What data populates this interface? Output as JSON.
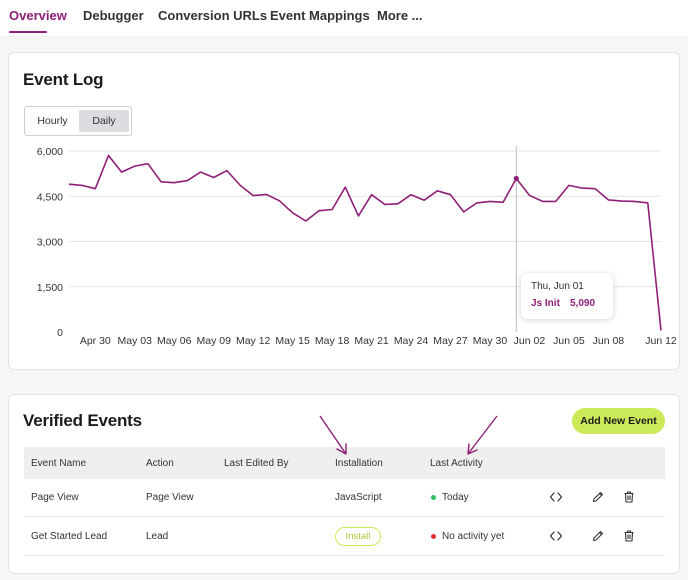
{
  "colors": {
    "accent": "#8e1f78",
    "lime": "#cbea5a",
    "status_ok": "#2dbf5a",
    "status_none": "#e5303a"
  },
  "tabs": [
    {
      "label": "Overview",
      "active": true
    },
    {
      "label": "Debugger",
      "active": false
    },
    {
      "label": "Conversion URLs",
      "active": false
    },
    {
      "label": "Event Mappings",
      "active": false
    },
    {
      "label": "More ...",
      "active": false
    }
  ],
  "event_log": {
    "title": "Event Log",
    "toggle": {
      "options": [
        "Hourly",
        "Daily"
      ],
      "selected": "Daily"
    },
    "tooltip": {
      "date": "Thu, Jun 01",
      "series": "Js Init",
      "value": "5,090"
    }
  },
  "chart_data": {
    "type": "line",
    "ylim": [
      0,
      6000
    ],
    "y_ticks": [
      "6,000",
      "4,500",
      "3,000",
      "1,500",
      "0"
    ],
    "y_tick_values": [
      6000,
      4500,
      3000,
      1500,
      0
    ],
    "x_tick_labels": [
      "Apr 30",
      "May 03",
      "May 06",
      "May 09",
      "May 12",
      "May 15",
      "May 18",
      "May 21",
      "May 24",
      "May 27",
      "May 30",
      "Jun 02",
      "Jun 05",
      "Jun 08",
      "Jun 12"
    ],
    "grid": true,
    "x": [
      "Apr 28",
      "Apr 29",
      "Apr 30",
      "May 01",
      "May 02",
      "May 03",
      "May 04",
      "May 05",
      "May 06",
      "May 07",
      "May 08",
      "May 09",
      "May 10",
      "May 11",
      "May 12",
      "May 13",
      "May 14",
      "May 15",
      "May 16",
      "May 17",
      "May 18",
      "May 19",
      "May 20",
      "May 21",
      "May 22",
      "May 23",
      "May 24",
      "May 25",
      "May 26",
      "May 27",
      "May 28",
      "May 29",
      "May 30",
      "May 31",
      "Jun 01",
      "Jun 02",
      "Jun 03",
      "Jun 04",
      "Jun 05",
      "Jun 06",
      "Jun 07",
      "Jun 08",
      "Jun 09",
      "Jun 10",
      "Jun 11",
      "Jun 12"
    ],
    "series": [
      {
        "name": "Js Init",
        "values": [
          4900,
          4860,
          4750,
          5850,
          5300,
          5500,
          5580,
          4980,
          4950,
          5020,
          5300,
          5120,
          5350,
          4870,
          4520,
          4560,
          4350,
          3950,
          3680,
          4020,
          4060,
          4800,
          3850,
          4550,
          4230,
          4250,
          4550,
          4370,
          4680,
          4550,
          3980,
          4280,
          4330,
          4300,
          5090,
          4530,
          4330,
          4330,
          4860,
          4770,
          4750,
          4380,
          4340,
          4330,
          4280,
          50
        ],
        "color": "#8e1f78"
      }
    ],
    "highlight_index": 34
  },
  "verified_events": {
    "title": "Verified Events",
    "add_button": "Add New Event",
    "columns": [
      "Event Name",
      "Action",
      "Last Edited By",
      "Installation",
      "Last Activity"
    ],
    "rows": [
      {
        "event_name": "Page View",
        "action": "Page View",
        "last_edited_by": "",
        "installation": "JavaScript",
        "install_button": false,
        "last_activity": "Today",
        "status": "green"
      },
      {
        "event_name": "Get Started Lead",
        "action": "Lead",
        "last_edited_by": "",
        "installation": "Install",
        "install_button": true,
        "last_activity": "No activity yet",
        "status": "red"
      }
    ],
    "row_icons": [
      "code-icon",
      "pencil-icon",
      "trash-icon"
    ]
  }
}
